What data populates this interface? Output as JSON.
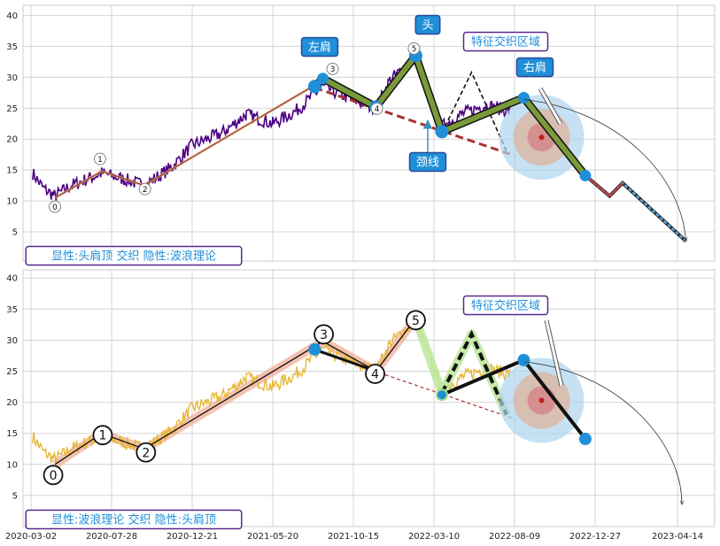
{
  "chart_data": [
    {
      "type": "line",
      "panel": "top",
      "ylim": [
        0,
        41
      ],
      "yticks": [
        5,
        10,
        15,
        20,
        25,
        30,
        35,
        40
      ],
      "grid": true,
      "band_label": "显性:头肩顶 交织 隐性:波浪理论",
      "price_color": "#4b0082",
      "wave_points": [
        {
          "label": "0",
          "date": "2020-04-15",
          "value": 10.5
        },
        {
          "label": "1",
          "date": "2020-07-10",
          "value": 14.8
        },
        {
          "label": "2",
          "date": "2020-09-25",
          "value": 12.5
        },
        {
          "label": "3",
          "date": "2021-08-20",
          "value": 29.5
        },
        {
          "label": "4",
          "date": "2021-11-25",
          "value": 25.5
        },
        {
          "label": "5",
          "date": "2022-02-05",
          "value": 33.5
        }
      ],
      "head_shoulders": [
        {
          "label": "左肩",
          "date": "2021-08-05",
          "value": 28.5
        },
        {
          "label": "",
          "date": "2021-08-20",
          "value": 29.8
        },
        {
          "label": "",
          "date": "2021-11-25",
          "value": 25.2
        },
        {
          "label": "头",
          "date": "2022-02-05",
          "value": 33.5
        },
        {
          "label": "",
          "date": "2022-03-25",
          "value": 21.2
        },
        {
          "label": "右肩",
          "date": "2022-08-25",
          "value": 26.7
        },
        {
          "label": "",
          "date": "2022-12-10",
          "value": 14.1
        }
      ],
      "projection": [
        {
          "date": "2022-12-10",
          "value": 14.1
        },
        {
          "date": "2023-01-15",
          "value": 10.8
        },
        {
          "date": "2023-02-01",
          "value": 12.9
        },
        {
          "date": "2023-04-25",
          "value": 3.5
        }
      ],
      "neckline_label": "颈线",
      "neckline": [
        {
          "date": "2021-08-05",
          "value": 28.3
        },
        {
          "date": "2022-08-10",
          "value": 17.3
        }
      ],
      "zone_label": "特征交织区域",
      "zone_path": [
        {
          "date": "2022-03-25",
          "value": 21.0
        },
        {
          "date": "2022-05-20",
          "value": 30.8
        },
        {
          "date": "2022-07-25",
          "value": 18.0
        }
      ],
      "target_center": {
        "date": "2022-09-25",
        "value": 20.3
      }
    },
    {
      "type": "line",
      "panel": "bottom",
      "ylim": [
        0,
        41
      ],
      "yticks": [
        5,
        10,
        15,
        20,
        25,
        30,
        35,
        40
      ],
      "grid": true,
      "band_label": "显性:波浪理论 交织 隐性:头肩顶",
      "price_color": "#e6b83a",
      "x_ticks": [
        "2020-03-02",
        "2020-07-28",
        "2020-12-21",
        "2021-05-20",
        "2021-10-15",
        "2022-03-10",
        "2022-08-09",
        "2022-12-27",
        "2023-04-14"
      ],
      "wave_points": [
        {
          "label": "0",
          "date": "2020-04-15",
          "value": 10.0
        },
        {
          "label": "1",
          "date": "2020-07-10",
          "value": 15.0
        },
        {
          "label": "2",
          "date": "2020-09-25",
          "value": 12.5
        },
        {
          "label": "3",
          "date": "2021-08-20",
          "value": 29.8
        },
        {
          "label": "4",
          "date": "2021-11-25",
          "value": 25.0
        },
        {
          "label": "5",
          "date": "2022-02-05",
          "value": 33.5
        }
      ],
      "head_shoulders": [
        {
          "date": "2021-08-05",
          "value": 28.5
        },
        {
          "date": "2021-11-25",
          "value": 25.0
        },
        {
          "date": "2022-02-05",
          "value": 33.5
        },
        {
          "date": "2022-03-25",
          "value": 21.2
        },
        {
          "date": "2022-08-25",
          "value": 26.8
        },
        {
          "date": "2022-12-10",
          "value": 14.1
        }
      ],
      "zone_label": "特征交织区域",
      "zone_path": [
        {
          "date": "2022-03-25",
          "value": 21.5
        },
        {
          "date": "2022-05-20",
          "value": 31.0
        },
        {
          "date": "2022-07-25",
          "value": 18.0
        }
      ],
      "neckline": [
        {
          "date": "2021-08-05",
          "value": 28.3
        },
        {
          "date": "2022-08-10",
          "value": 17.3
        }
      ],
      "target_center": {
        "date": "2022-09-25",
        "value": 20.3
      }
    }
  ]
}
